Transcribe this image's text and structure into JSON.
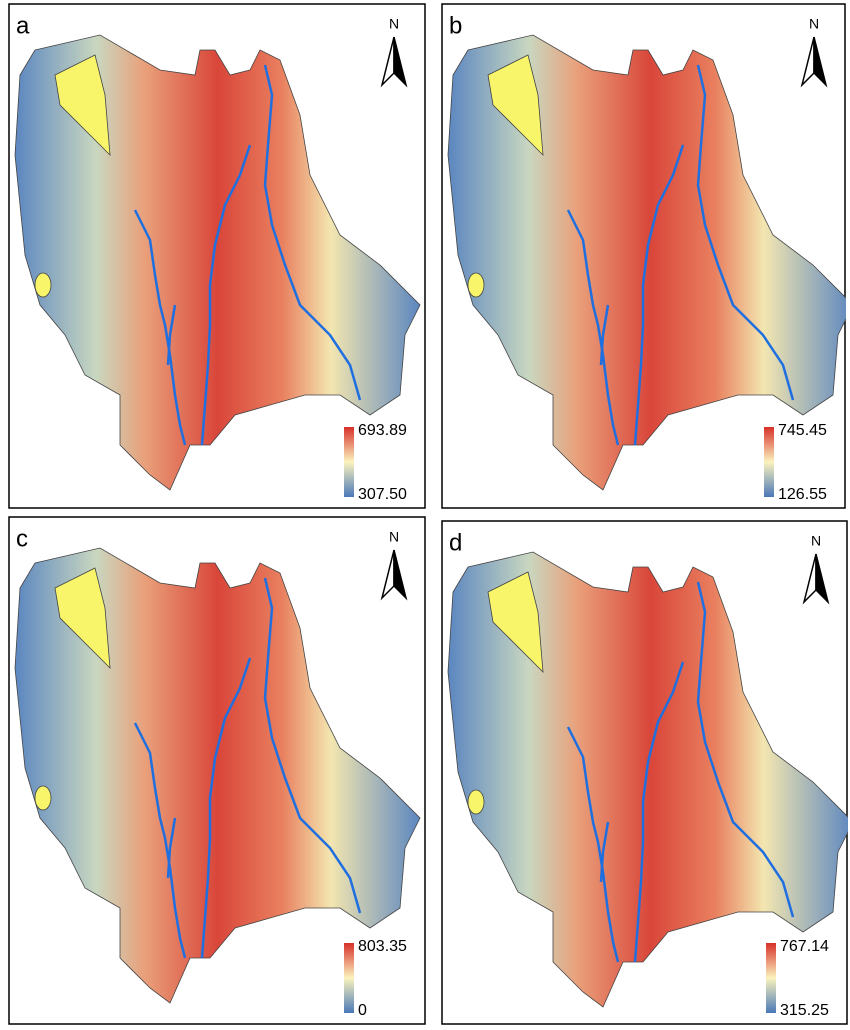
{
  "panels": [
    {
      "label": "a",
      "north": "N",
      "legend_max": "693.89",
      "legend_min": "307.50"
    },
    {
      "label": "b",
      "north": "N",
      "legend_max": "745.45",
      "legend_min": "126.55"
    },
    {
      "label": "c",
      "north": "N",
      "legend_max": "803.35",
      "legend_min": "0"
    },
    {
      "label": "d",
      "north": "N",
      "legend_max": "767.14",
      "legend_min": "315.25"
    }
  ]
}
